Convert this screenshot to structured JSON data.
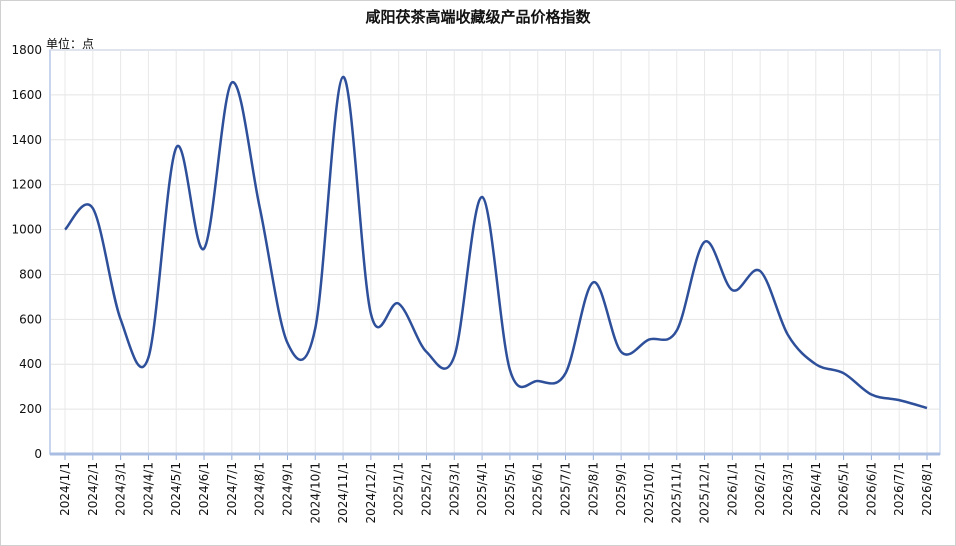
{
  "chart_data": {
    "type": "line",
    "title": "咸阳茯茶高端收藏级产品价格指数",
    "y_unit_label": "单位：点",
    "categories": [
      "2024/1/1",
      "2024/2/1",
      "2024/3/1",
      "2024/4/1",
      "2024/5/1",
      "2024/6/1",
      "2024/7/1",
      "2024/8/1",
      "2024/9/1",
      "2024/10/1",
      "2024/11/1",
      "2024/12/1",
      "2025/1/1",
      "2025/2/1",
      "2025/3/1",
      "2025/4/1",
      "2025/5/1",
      "2025/6/1",
      "2025/7/1",
      "2025/8/1",
      "2025/9/1",
      "2025/10/1",
      "2025/11/1",
      "2025/12/1",
      "2026/1/1",
      "2026/2/1",
      "2026/3/1",
      "2026/4/1",
      "2026/5/1",
      "2026/6/1",
      "2026/7/1",
      "2026/8/1"
    ],
    "series": [
      {
        "color": "#2e4f9a",
        "values": [
          1000,
          1095,
          600,
          430,
          1365,
          915,
          1655,
          1100,
          495,
          560,
          1680,
          625,
          670,
          455,
          435,
          1145,
          375,
          325,
          360,
          765,
          455,
          510,
          550,
          945,
          730,
          815,
          530,
          400,
          360,
          265,
          240,
          205
        ]
      }
    ],
    "ylim": [
      0,
      1800
    ],
    "yticks": [
      0,
      200,
      400,
      600,
      800,
      1000,
      1200,
      1400,
      1600,
      1800
    ],
    "grid": true,
    "smooth": true
  }
}
